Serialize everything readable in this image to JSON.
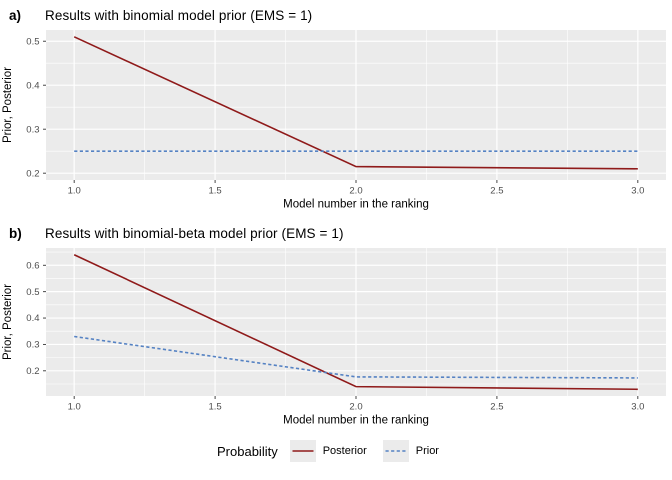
{
  "colors": {
    "panel_bg": "#EBEBEB",
    "grid": "#FFFFFF",
    "tick_mark": "#333333",
    "tick_text": "#4D4D4D",
    "axis_title": "#000000",
    "posterior": "#8F1A1A",
    "prior": "#5582C3",
    "legend_key_bg": "#EBEBEB"
  },
  "figure": {
    "legend": {
      "title": "Probability",
      "items": [
        {
          "label": "Posterior",
          "style": "solid",
          "color_key": "posterior"
        },
        {
          "label": "Prior",
          "style": "dashed",
          "color_key": "prior"
        }
      ]
    }
  },
  "chart_data": [
    {
      "type": "line",
      "panel_tag": "a)",
      "title": "Results with binomial model prior (EMS = 1)",
      "xlabel": "Model number in the ranking",
      "ylabel": "Prior, Posterior",
      "x": [
        1.0,
        2.0,
        3.0
      ],
      "series": [
        {
          "name": "Posterior",
          "values": [
            0.51,
            0.215,
            0.21
          ],
          "style": "solid",
          "color_key": "posterior"
        },
        {
          "name": "Prior",
          "values": [
            0.25,
            0.25,
            0.25
          ],
          "style": "dashed",
          "color_key": "prior"
        }
      ],
      "xlim": [
        0.9,
        3.1
      ],
      "ylim": [
        0.1845,
        0.5255
      ],
      "xticks": [
        1.0,
        1.5,
        2.0,
        2.5,
        3.0
      ],
      "yticks": [
        0.2,
        0.3,
        0.4,
        0.5
      ],
      "x_minor": [
        1.25,
        1.75,
        2.25,
        2.75
      ],
      "y_minor": [
        0.25,
        0.35,
        0.45
      ],
      "grid": true,
      "legend_position": "bottom"
    },
    {
      "type": "line",
      "panel_tag": "b)",
      "title": "Results with binomial-beta model prior (EMS = 1)",
      "xlabel": "Model number in the ranking",
      "ylabel": "Prior, Posterior",
      "x": [
        1.0,
        2.0,
        3.0
      ],
      "series": [
        {
          "name": "Posterior",
          "values": [
            0.64,
            0.14,
            0.13
          ],
          "style": "solid",
          "color_key": "posterior"
        },
        {
          "name": "Prior",
          "values": [
            0.33,
            0.177,
            0.173
          ],
          "style": "dashed",
          "color_key": "prior"
        }
      ],
      "xlim": [
        0.9,
        3.1
      ],
      "ylim": [
        0.1045,
        0.6655
      ],
      "xticks": [
        1.0,
        1.5,
        2.0,
        2.5,
        3.0
      ],
      "yticks": [
        0.2,
        0.3,
        0.4,
        0.5,
        0.6
      ],
      "x_minor": [
        1.25,
        1.75,
        2.25,
        2.75
      ],
      "y_minor": [
        0.15,
        0.25,
        0.35,
        0.45,
        0.55,
        0.65
      ],
      "grid": true,
      "legend_position": "bottom"
    }
  ]
}
